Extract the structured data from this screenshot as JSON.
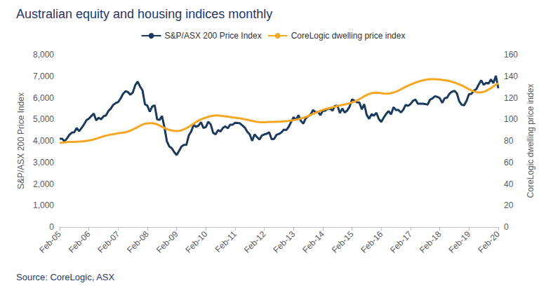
{
  "chart_data": {
    "type": "line",
    "title": "Australian equity and housing indices monthly",
    "source": "Source: CoreLogic, ASX",
    "y_label": "S&P/ASX 200 Price Index",
    "y2_label": "CoreLogic dwelling price index",
    "categories": [
      "Feb-05",
      null,
      null,
      null,
      null,
      null,
      null,
      null,
      null,
      null,
      null,
      null,
      "Feb-06",
      null,
      null,
      null,
      null,
      null,
      null,
      null,
      null,
      null,
      null,
      null,
      "Feb-07",
      null,
      null,
      null,
      null,
      null,
      null,
      null,
      null,
      null,
      null,
      null,
      "Feb-08",
      null,
      null,
      null,
      null,
      null,
      null,
      null,
      null,
      null,
      null,
      null,
      "Feb-09",
      null,
      null,
      null,
      null,
      null,
      null,
      null,
      null,
      null,
      null,
      null,
      "Feb-10",
      null,
      null,
      null,
      null,
      null,
      null,
      null,
      null,
      null,
      null,
      null,
      "Feb-11",
      null,
      null,
      null,
      null,
      null,
      null,
      null,
      null,
      null,
      null,
      null,
      "Feb-12",
      null,
      null,
      null,
      null,
      null,
      null,
      null,
      null,
      null,
      null,
      null,
      "Feb-13",
      null,
      null,
      null,
      null,
      null,
      null,
      null,
      null,
      null,
      null,
      null,
      "Feb-14",
      null,
      null,
      null,
      null,
      null,
      null,
      null,
      null,
      null,
      null,
      null,
      "Feb-15",
      null,
      null,
      null,
      null,
      null,
      null,
      null,
      null,
      null,
      null,
      null,
      "Feb-16",
      null,
      null,
      null,
      null,
      null,
      null,
      null,
      null,
      null,
      null,
      null,
      "Feb-17",
      null,
      null,
      null,
      null,
      null,
      null,
      null,
      null,
      null,
      null,
      null,
      "Feb-18",
      null,
      null,
      null,
      null,
      null,
      null,
      null,
      null,
      null,
      null,
      null,
      "Feb-19",
      null,
      null,
      null,
      null,
      null,
      null,
      null,
      null,
      null,
      null,
      null,
      "Feb-20"
    ],
    "series": [
      {
        "name": "S&P/ASX 200 Price Index",
        "color": "#1b3a5c",
        "axis": "y",
        "values": [
          4100,
          4100,
          3980,
          4110,
          4280,
          4380,
          4400,
          4600,
          4450,
          4600,
          4760,
          4960,
          5030,
          5150,
          5270,
          4950,
          5070,
          5000,
          5140,
          5180,
          5380,
          5500,
          5670,
          5750,
          5800,
          5960,
          6180,
          6300,
          6270,
          6140,
          6240,
          6580,
          6750,
          6520,
          6340,
          5700,
          5630,
          5350,
          5600,
          5650,
          5000,
          4970,
          5150,
          4630,
          3980,
          3740,
          3660,
          3480,
          3340,
          3530,
          3740,
          3810,
          3810,
          4250,
          4440,
          4740,
          4650,
          4710,
          4870,
          4600,
          4640,
          4890,
          4760,
          4370,
          4300,
          4500,
          4430,
          4600,
          4670,
          4580,
          4750,
          4750,
          4840,
          4830,
          4810,
          4710,
          4610,
          4420,
          4300,
          4000,
          4300,
          4170,
          4060,
          4250,
          4300,
          4330,
          4400,
          4070,
          4090,
          4280,
          4320,
          4390,
          4520,
          4500,
          4650,
          4880,
          5100,
          4970,
          5190,
          4930,
          4800,
          5050,
          5140,
          5220,
          5430,
          5320,
          5350,
          5190,
          5400,
          5400,
          5490,
          5490,
          5400,
          5630,
          5630,
          5290,
          5500,
          5310,
          5410,
          5590,
          5930,
          5860,
          5790,
          5780,
          5460,
          5700,
          5210,
          5020,
          5240,
          5170,
          5300,
          5010,
          4880,
          5080,
          5250,
          5380,
          5230,
          5560,
          5430,
          5440,
          5320,
          5440,
          5670,
          5620,
          5710,
          5860,
          5920,
          5720,
          5720,
          5720,
          5710,
          5680,
          5910,
          5970,
          6070,
          6040,
          5980,
          5760,
          5980,
          6010,
          6190,
          6280,
          6320,
          6210,
          5830,
          5670,
          5650,
          5860,
          6170,
          6180,
          6330,
          6400,
          6620,
          6810,
          6600,
          6690,
          6660,
          6850,
          6680,
          7020,
          6440
        ]
      },
      {
        "name": "CoreLogic dwelling price index",
        "color": "#f5a623",
        "axis": "y2",
        "values": [
          78,
          78.3,
          78.6,
          78.8,
          79,
          79,
          79.1,
          79.2,
          79.3,
          79.5,
          79.7,
          80,
          80.3,
          80.8,
          81.3,
          82,
          82.8,
          83.5,
          84.2,
          84.8,
          85.3,
          85.8,
          86.2,
          86.6,
          87,
          87.3,
          87.6,
          88,
          88.6,
          89.5,
          90.5,
          91.6,
          92.8,
          94,
          95,
          95.8,
          96.3,
          96.5,
          96.4,
          96,
          95.3,
          94.3,
          93.1,
          92,
          91,
          90.2,
          89.6,
          89.2,
          89.1,
          89.3,
          89.8,
          90.6,
          91.7,
          93,
          94.5,
          96,
          97.5,
          98.8,
          99.9,
          100.8,
          101.6,
          102.3,
          102.9,
          103.3,
          103.5,
          103.5,
          103.3,
          103,
          102.7,
          102.4,
          102.1,
          101.8,
          101.5,
          101.2,
          100.9,
          100.5,
          100,
          99.5,
          99,
          98.5,
          98,
          97.6,
          97.4,
          97.3,
          97.3,
          97.4,
          97.5,
          97.5,
          97.6,
          97.7,
          97.8,
          97.9,
          98.1,
          98.3,
          98.6,
          98.9,
          99.2,
          99.6,
          100.1,
          100.7,
          101.4,
          102.2,
          103.1,
          104,
          105,
          106,
          107,
          107.9,
          108.7,
          109.4,
          110,
          110.6,
          111.2,
          111.8,
          112.3,
          112.8,
          113.3,
          113.8,
          114.3,
          114.9,
          115.6,
          116.5,
          117.5,
          118.7,
          120,
          121.3,
          122.5,
          123.5,
          124.2,
          124.6,
          124.7,
          124.5,
          124.2,
          123.9,
          123.8,
          123.9,
          124.2,
          124.8,
          125.6,
          126.6,
          127.8,
          129,
          130.2,
          131.2,
          132.2,
          133.1,
          134,
          134.8,
          135.5,
          136.1,
          136.6,
          137,
          137.2,
          137.3,
          137.2,
          137.1,
          136.9,
          136.6,
          136.3,
          135.9,
          135.4,
          134.8,
          134.1,
          133.3,
          132.4,
          131.4,
          130.3,
          129.1,
          127.9,
          126.8,
          125.9,
          125.2,
          124.9,
          125,
          125.5,
          126.4,
          127.6,
          129,
          130.5,
          132,
          133.5
        ]
      }
    ],
    "ylim": [
      0,
      8000
    ],
    "yticks": [
      0,
      1000,
      2000,
      3000,
      4000,
      5000,
      6000,
      7000,
      8000
    ],
    "y2lim": [
      0,
      160
    ],
    "y2ticks": [
      0,
      20,
      40,
      60,
      80,
      100,
      120,
      140,
      160
    ],
    "grid": false,
    "legend": "top"
  }
}
